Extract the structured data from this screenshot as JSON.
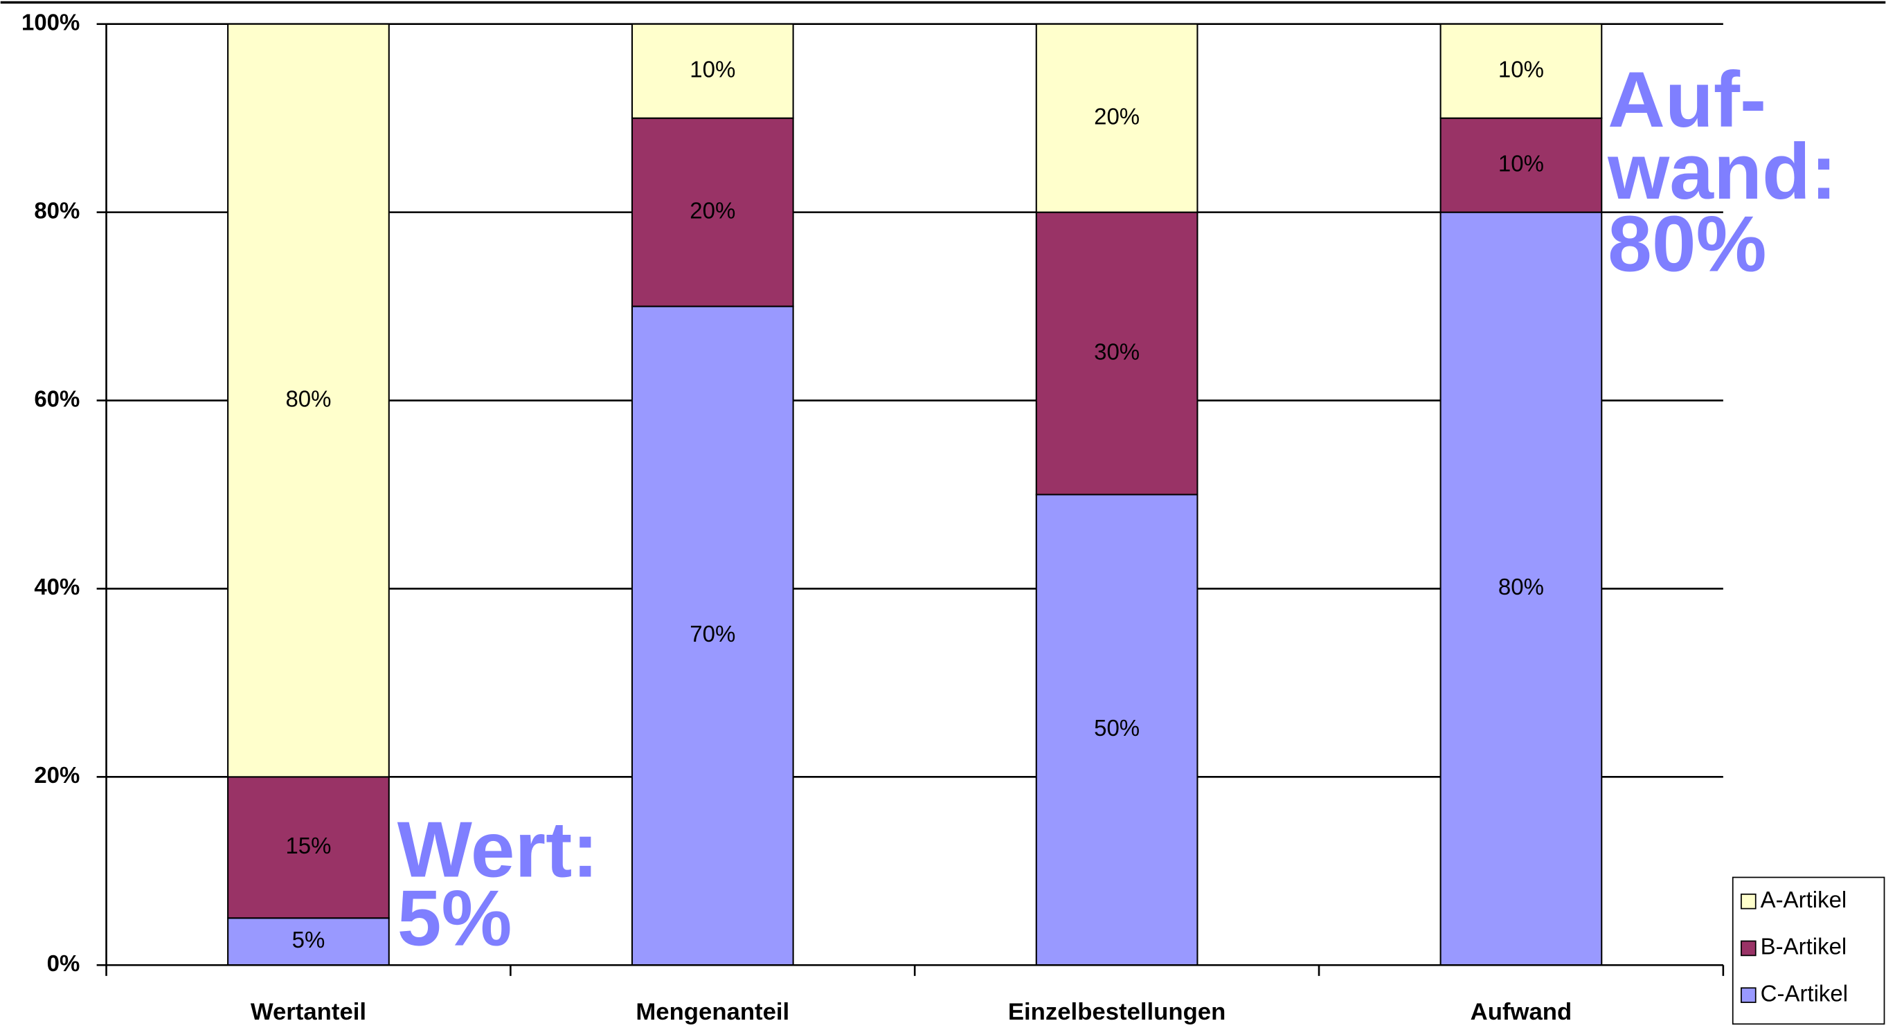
{
  "chart_data": {
    "type": "stacked_bar",
    "categories": [
      "Wertanteil",
      "Mengenanteil",
      "Einzelbestellungen",
      "Aufwand"
    ],
    "series": [
      {
        "name": "C-Artikel",
        "color": "#9999ff",
        "values": [
          5,
          70,
          50,
          80
        ],
        "value_labels": [
          "5%",
          "70%",
          "50%",
          "80%"
        ]
      },
      {
        "name": "B-Artikel",
        "color": "#993366",
        "values": [
          15,
          20,
          30,
          10
        ],
        "value_labels": [
          "15%",
          "20%",
          "30%",
          "10%"
        ]
      },
      {
        "name": "A-Artikel",
        "color": "#ffffcc",
        "values": [
          80,
          10,
          20,
          10
        ],
        "value_labels": [
          "80%",
          "10%",
          "20%",
          "10%"
        ]
      }
    ],
    "ylim": [
      0,
      100
    ],
    "yticks": [
      {
        "value": 0,
        "label": "0%"
      },
      {
        "value": 20,
        "label": "20%"
      },
      {
        "value": 40,
        "label": "40%"
      },
      {
        "value": 60,
        "label": "60%"
      },
      {
        "value": 80,
        "label": "80%"
      },
      {
        "value": 100,
        "label": "100%"
      }
    ],
    "grid": true,
    "legend": "bottom-right",
    "annotations": [
      {
        "lines": [
          "Wert:",
          "5%"
        ]
      },
      {
        "lines": [
          "Auf-",
          "wand:",
          "80%"
        ]
      }
    ]
  }
}
